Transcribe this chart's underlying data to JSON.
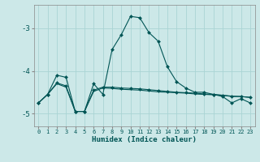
{
  "xlabel": "Humidex (Indice chaleur)",
  "background_color": "#cce8e8",
  "grid_color": "#aad4d4",
  "line_color": "#005555",
  "x_values": [
    0,
    1,
    2,
    3,
    4,
    5,
    6,
    7,
    8,
    9,
    10,
    11,
    12,
    13,
    14,
    15,
    16,
    17,
    18,
    19,
    20,
    21,
    22,
    23
  ],
  "curve1_y": [
    -4.75,
    -4.55,
    -4.1,
    -4.15,
    -4.95,
    -4.95,
    -4.3,
    -4.55,
    -3.5,
    -3.15,
    -2.72,
    -2.75,
    -3.1,
    -3.3,
    -3.9,
    -4.25,
    -4.4,
    -4.5,
    -4.5,
    -4.55,
    -4.6,
    -4.75,
    -4.65,
    -4.75
  ],
  "curve2_y": [
    -4.75,
    -4.55,
    -4.28,
    -4.35,
    -4.95,
    -4.95,
    -4.45,
    -4.38,
    -4.38,
    -4.4,
    -4.41,
    -4.42,
    -4.44,
    -4.46,
    -4.48,
    -4.5,
    -4.51,
    -4.52,
    -4.54,
    -4.55,
    -4.57,
    -4.6,
    -4.6,
    -4.62
  ],
  "curve3_y": [
    -4.75,
    -4.55,
    -4.3,
    -4.38,
    -4.95,
    -4.95,
    -4.48,
    -4.4,
    -4.41,
    -4.43,
    -4.44,
    -4.45,
    -4.47,
    -4.49,
    -4.5,
    -4.51,
    -4.52,
    -4.54,
    -4.55,
    -4.56,
    -4.57,
    -4.59,
    -4.6,
    -4.62
  ],
  "ylim": [
    -5.3,
    -2.45
  ],
  "yticks": [
    -5,
    -4,
    -3
  ],
  "xlim": [
    -0.5,
    23.5
  ]
}
